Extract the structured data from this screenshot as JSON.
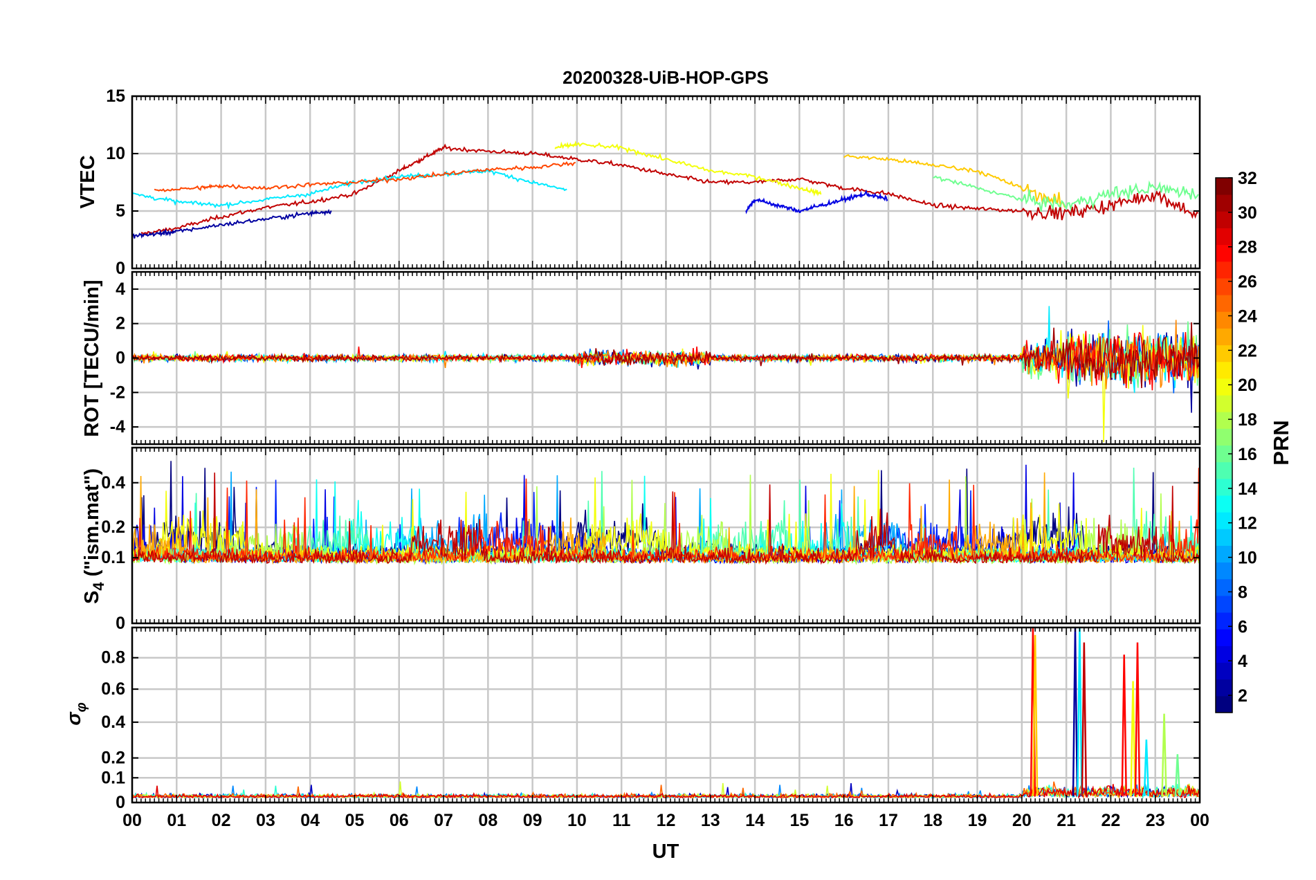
{
  "chart_data": {
    "title": "20200328-UiB-HOP-GPS",
    "type": "line",
    "xlabel": "UT",
    "x_ticks": [
      "00",
      "01",
      "02",
      "03",
      "04",
      "05",
      "06",
      "07",
      "08",
      "09",
      "10",
      "11",
      "12",
      "13",
      "14",
      "15",
      "16",
      "17",
      "18",
      "19",
      "20",
      "21",
      "22",
      "23",
      "00"
    ],
    "xlim_hours": [
      0,
      24
    ],
    "colorbar": {
      "label": "PRN",
      "range": [
        1,
        32
      ],
      "ticks": [
        "2",
        "4",
        "6",
        "8",
        "10",
        "12",
        "14",
        "16",
        "18",
        "20",
        "22",
        "24",
        "26",
        "28",
        "30",
        "32"
      ],
      "colormap": "jet"
    },
    "panels": [
      {
        "ylabel": "VTEC",
        "ylim": [
          0,
          15
        ],
        "y_ticks": [
          "0",
          "5",
          "10",
          "15"
        ],
        "description": "Vertical TEC per satellite; daytime maximum ~10 TECU near 07-12 UT, ~3-6 TECU at night, enhanced variability after 20 UT",
        "series": [
          {
            "prn": 30,
            "x": [
              0.2,
              1,
              2,
              3,
              4,
              5,
              6,
              6.5,
              7,
              8,
              9,
              10,
              11,
              12,
              13,
              14,
              15,
              16,
              17,
              18,
              19,
              20,
              21,
              22,
              23,
              24
            ],
            "y": [
              3.0,
              3.5,
              4.5,
              5.3,
              5.8,
              6.5,
              8.5,
              9.5,
              10.5,
              10.2,
              10.0,
              9.5,
              9.0,
              8.2,
              7.5,
              7.5,
              7.8,
              7.0,
              6.5,
              5.5,
              5.2,
              5.0,
              4.8,
              5.5,
              6.5,
              4.5
            ]
          },
          {
            "prn": 2,
            "x": [
              0,
              0.5,
              1,
              2,
              3,
              4,
              4.5
            ],
            "y": [
              2.8,
              3.0,
              3.2,
              3.8,
              4.3,
              4.8,
              5.0
            ]
          },
          {
            "prn": 12,
            "x": [
              0,
              1,
              2,
              3,
              4,
              5,
              6,
              7,
              8,
              9,
              9.8
            ],
            "y": [
              6.5,
              5.8,
              5.5,
              6.0,
              6.5,
              7.5,
              8.0,
              8.2,
              8.5,
              7.5,
              6.8
            ]
          },
          {
            "prn": 20,
            "x": [
              9.5,
              10,
              11,
              12,
              13,
              14,
              15,
              15.5
            ],
            "y": [
              10.5,
              10.8,
              10.5,
              9.5,
              8.5,
              8.0,
              7.0,
              6.5
            ]
          },
          {
            "prn": 22,
            "x": [
              16,
              17,
              18,
              19,
              20,
              21
            ],
            "y": [
              9.8,
              9.5,
              9.0,
              8.5,
              7.0,
              5.5
            ]
          },
          {
            "prn": 26,
            "x": [
              0.5,
              1.5,
              2,
              3,
              4,
              5,
              6,
              7,
              8,
              9,
              10
            ],
            "y": [
              6.8,
              7.0,
              7.2,
              7.0,
              7.3,
              7.5,
              7.8,
              8.2,
              8.6,
              8.8,
              9.2
            ]
          },
          {
            "prn": 4,
            "x": [
              13.8,
              14,
              14.5,
              15,
              15.5,
              16,
              16.5,
              17
            ],
            "y": [
              5.0,
              6.0,
              5.5,
              5.0,
              5.5,
              6.0,
              6.5,
              6.0
            ]
          },
          {
            "prn": 16,
            "x": [
              18,
              19,
              20,
              21,
              22,
              23,
              24
            ],
            "y": [
              8.0,
              7.0,
              6.0,
              5.5,
              6.5,
              7.0,
              6.5
            ]
          }
        ]
      },
      {
        "ylabel": "ROT [TECU/min]",
        "ylim": [
          -5,
          5
        ],
        "y_ticks": [
          "-4",
          "-2",
          "0",
          "2",
          "4"
        ],
        "description": "Rate of TEC; near zero (±0.5) most of the day, bursts up to ±4-5 TECU/min between 20 and 24 UT"
      },
      {
        "ylabel": "S4 (\"ism.mat\")",
        "ylabel_main": "S",
        "ylabel_sub": "4",
        "ylabel_rest": " (\"ism.mat\")",
        "ylim": [
          0,
          0.6
        ],
        "y_ticks": [
          "0",
          "0.1",
          "0.2",
          "0.4"
        ],
        "description": "Amplitude scintillation index; background 0.05-0.15, spikes up to ~0.6"
      },
      {
        "ylabel": "σφ",
        "ylabel_main": "σ",
        "ylabel_sub": "φ",
        "ylim": [
          0,
          1
        ],
        "y_ticks": [
          "0",
          "0.1",
          "0.2",
          "0.4",
          "0.6",
          "0.8"
        ],
        "description": "Phase scintillation index; near zero until 20 UT, spikes up to 1.0 at ~20.3, 21.3, 22.6 UT",
        "spikes": [
          {
            "x": 20.25,
            "y": 1.0,
            "prn": 28
          },
          {
            "x": 20.3,
            "y": 0.95,
            "prn": 22
          },
          {
            "x": 21.2,
            "y": 1.0,
            "prn": 2
          },
          {
            "x": 21.3,
            "y": 1.0,
            "prn": 12
          },
          {
            "x": 21.4,
            "y": 0.9,
            "prn": 30
          },
          {
            "x": 22.3,
            "y": 0.82,
            "prn": 28
          },
          {
            "x": 22.5,
            "y": 0.65,
            "prn": 20
          },
          {
            "x": 22.6,
            "y": 0.9,
            "prn": 28
          },
          {
            "x": 22.8,
            "y": 0.3,
            "prn": 12
          },
          {
            "x": 23.2,
            "y": 0.45,
            "prn": 18
          },
          {
            "x": 23.5,
            "y": 0.22,
            "prn": 16
          }
        ]
      }
    ]
  }
}
